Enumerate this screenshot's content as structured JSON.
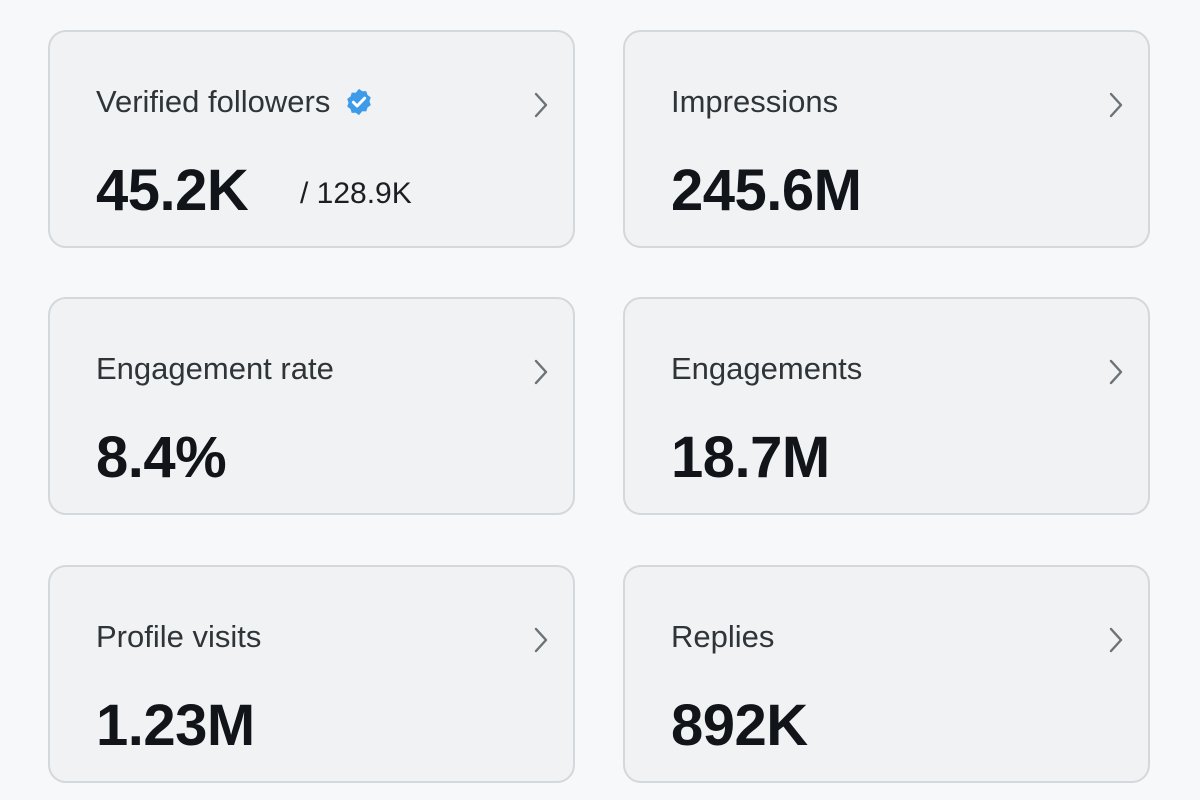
{
  "cards": [
    {
      "label": "Verified followers",
      "value": "45.2K",
      "secondary": "/ 128.9K"
    },
    {
      "label": "Impressions",
      "value": "245.6M"
    },
    {
      "label": "Engagement rate",
      "value": "8.4%"
    },
    {
      "label": "Engagements",
      "value": "18.7M"
    },
    {
      "label": "Profile visits",
      "value": "1.23M"
    },
    {
      "label": "Replies",
      "value": "892K"
    }
  ]
}
